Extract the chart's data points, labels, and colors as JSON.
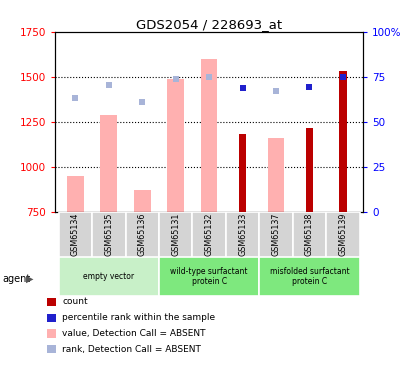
{
  "title": "GDS2054 / 228693_at",
  "samples": [
    "GSM65134",
    "GSM65135",
    "GSM65136",
    "GSM65131",
    "GSM65132",
    "GSM65133",
    "GSM65137",
    "GSM65138",
    "GSM65139"
  ],
  "ylim_left": [
    750,
    1750
  ],
  "ylim_right": [
    0,
    100
  ],
  "yticks_left": [
    750,
    1000,
    1250,
    1500,
    1750
  ],
  "yticks_right": [
    0,
    25,
    50,
    75,
    100
  ],
  "ytick_labels_right": [
    "0",
    "25",
    "50",
    "75",
    "100%"
  ],
  "bars_absent_value": [
    950,
    1290,
    870,
    1490,
    1600,
    0,
    1160,
    0,
    0
  ],
  "bars_present_value": [
    0,
    0,
    0,
    0,
    0,
    1185,
    0,
    1215,
    1535
  ],
  "rank_dots_absent_y": [
    1380,
    1455,
    1360,
    1490,
    1500,
    0,
    1420,
    0,
    0
  ],
  "rank_dots_present_y": [
    0,
    0,
    0,
    0,
    0,
    1440,
    0,
    1445,
    1500
  ],
  "color_bar_absent": "#ffb0b0",
  "color_bar_present": "#bb0000",
  "color_rank_absent": "#a8b4d8",
  "color_rank_present": "#2020cc",
  "dotted_line_values": [
    1000,
    1250,
    1500
  ],
  "bar_width": 0.5,
  "group_spans": [
    [
      0,
      2,
      "empty vector",
      "#c8f0c8"
    ],
    [
      3,
      5,
      "wild-type surfactant\nprotein C",
      "#7ee87e"
    ],
    [
      6,
      8,
      "misfolded surfactant\nprotein C",
      "#7ee87e"
    ]
  ],
  "legend_items": [
    {
      "color": "#bb0000",
      "label": "count"
    },
    {
      "color": "#2020cc",
      "label": "percentile rank within the sample"
    },
    {
      "color": "#ffb0b0",
      "label": "value, Detection Call = ABSENT"
    },
    {
      "color": "#a8b4d8",
      "label": "rank, Detection Call = ABSENT"
    }
  ]
}
